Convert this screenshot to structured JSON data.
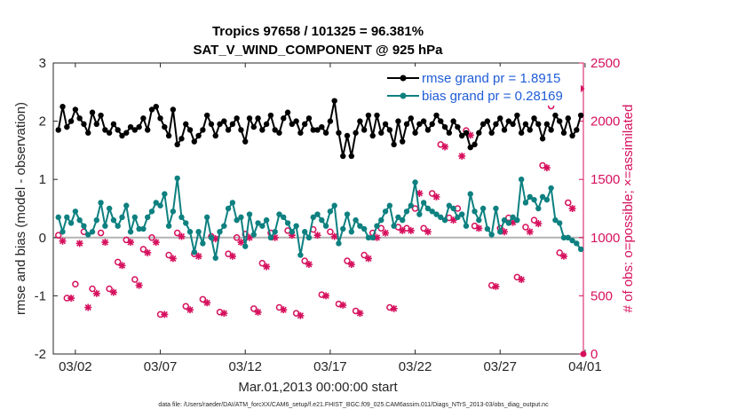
{
  "colors": {
    "rmse": "#000000",
    "bias": "#0e8080",
    "obs": "#d6105d",
    "legend_text": "#1f5cd6",
    "zero_line": "#b3b3b3"
  },
  "chart_data": {
    "type": "line",
    "title": "Tropics 97658 / 101325 = 96.381%",
    "subtitle": "SAT_V_WIND_COMPONENT @ 925 hPa",
    "xlabel": "Mar.01,2013 00:00:00 start",
    "ylabel_left": "rmse and bias (model - observation)",
    "ylabel_right": "# of obs: o=possible; ×=assimilated",
    "footnote": "data file: /Users/raeder/DAI/ATM_forcXX/CAM6_setup/f.e21.FHIST_BGC.f09_025.CAM6assim.011/Diags_NTrS_2013-03/obs_diag_output.nc",
    "x_range": [
      0.7,
      31.9
    ],
    "ylim_left": [
      -2,
      3
    ],
    "ylim_right": [
      0,
      2500
    ],
    "left_ticks": [
      "-2",
      "-1",
      "0",
      "1",
      "2",
      "3"
    ],
    "right_ticks": [
      "0",
      "500",
      "1000",
      "1500",
      "2000",
      "2500"
    ],
    "x_ticks": [
      {
        "day": 2,
        "label": "03/02"
      },
      {
        "day": 7,
        "label": "03/07"
      },
      {
        "day": 12,
        "label": "03/12"
      },
      {
        "day": 17,
        "label": "03/17"
      },
      {
        "day": 22,
        "label": "03/22"
      },
      {
        "day": 27,
        "label": "03/27"
      },
      {
        "day": 32,
        "label": "04/01"
      }
    ],
    "legend": {
      "position": "top-right",
      "entries": [
        "rmse grand pr = 1.8915",
        "bias grand pr = 0.28169"
      ]
    },
    "series": [
      {
        "name": "rmse",
        "marker": "filled-circle",
        "axis": "left",
        "x": [
          1.0,
          1.25,
          1.5,
          1.75,
          2.0,
          2.25,
          2.5,
          2.75,
          3.0,
          3.25,
          3.5,
          3.75,
          4.0,
          4.25,
          4.5,
          4.75,
          5.0,
          5.25,
          5.5,
          5.75,
          6.0,
          6.25,
          6.5,
          6.75,
          7.0,
          7.25,
          7.5,
          7.75,
          8.0,
          8.25,
          8.5,
          8.75,
          9.0,
          9.25,
          9.5,
          9.75,
          10.0,
          10.25,
          10.5,
          10.75,
          11.0,
          11.25,
          11.5,
          11.75,
          12.0,
          12.25,
          12.5,
          12.75,
          13.0,
          13.25,
          13.5,
          13.75,
          14.0,
          14.25,
          14.5,
          14.75,
          15.0,
          15.25,
          15.5,
          15.75,
          16.0,
          16.25,
          16.5,
          16.75,
          17.0,
          17.25,
          17.5,
          17.75,
          18.0,
          18.25,
          18.5,
          18.75,
          19.0,
          19.25,
          19.5,
          19.75,
          20.0,
          20.25,
          20.5,
          20.75,
          21.0,
          21.25,
          21.5,
          21.75,
          22.0,
          22.25,
          22.5,
          22.75,
          23.0,
          23.25,
          23.5,
          23.75,
          24.0,
          24.25,
          24.5,
          24.75,
          25.0,
          25.25,
          25.5,
          25.75,
          26.0,
          26.25,
          26.5,
          26.75,
          27.0,
          27.25,
          27.5,
          27.75,
          28.0,
          28.25,
          28.5,
          28.75,
          29.0,
          29.25,
          29.5,
          29.75,
          30.0,
          30.25,
          30.5,
          30.75,
          31.0,
          31.25,
          31.5,
          31.75
        ],
        "values": [
          1.85,
          2.25,
          1.9,
          2.0,
          2.2,
          2.05,
          1.95,
          1.8,
          2.15,
          1.95,
          2.1,
          1.85,
          1.8,
          1.95,
          1.85,
          1.75,
          1.8,
          1.9,
          1.85,
          1.9,
          2.05,
          1.85,
          2.2,
          2.25,
          2.05,
          1.9,
          1.75,
          2.2,
          1.6,
          1.7,
          1.95,
          1.85,
          1.65,
          1.75,
          1.85,
          2.1,
          1.95,
          1.75,
          1.95,
          2.0,
          1.85,
          1.95,
          2.05,
          1.85,
          1.65,
          2.05,
          1.9,
          2.05,
          1.85,
          1.95,
          2.1,
          1.85,
          1.8,
          2.05,
          2.15,
          1.95,
          2.0,
          1.8,
          1.95,
          2.05,
          1.85,
          1.85,
          1.9,
          1.8,
          2.0,
          2.35,
          1.8,
          1.4,
          1.75,
          1.4,
          1.8,
          2.0,
          1.85,
          2.1,
          1.75,
          2.1,
          1.8,
          1.95,
          1.85,
          1.6,
          2.0,
          1.65,
          1.95,
          2.05,
          1.8,
          1.95,
          2.0,
          1.85,
          1.95,
          2.1,
          2.0,
          1.9,
          1.8,
          2.0,
          1.9,
          1.75,
          1.8,
          1.55,
          1.6,
          1.8,
          1.95,
          2.0,
          1.8,
          1.95,
          2.05,
          1.85,
          2.0,
          1.95,
          2.1,
          1.8,
          1.95,
          1.85,
          2.05,
          1.95,
          1.7,
          1.95,
          1.85,
          2.1,
          2.0,
          1.8,
          2.05,
          1.75,
          1.85,
          2.1
        ]
      },
      {
        "name": "bias",
        "marker": "filled-circle",
        "axis": "left",
        "x": [
          1.0,
          1.25,
          1.5,
          1.75,
          2.0,
          2.25,
          2.5,
          2.75,
          3.0,
          3.25,
          3.5,
          3.75,
          4.0,
          4.25,
          4.5,
          4.75,
          5.0,
          5.25,
          5.5,
          5.75,
          6.0,
          6.25,
          6.5,
          6.75,
          7.0,
          7.25,
          7.5,
          7.75,
          8.0,
          8.25,
          8.5,
          8.75,
          9.0,
          9.25,
          9.5,
          9.75,
          10.0,
          10.25,
          10.5,
          10.75,
          11.0,
          11.25,
          11.5,
          11.75,
          12.0,
          12.25,
          12.5,
          12.75,
          13.0,
          13.25,
          13.5,
          13.75,
          14.0,
          14.25,
          14.5,
          14.75,
          15.0,
          15.25,
          15.5,
          15.75,
          16.0,
          16.25,
          16.5,
          16.75,
          17.0,
          17.25,
          17.5,
          17.75,
          18.0,
          18.25,
          18.5,
          18.75,
          19.0,
          19.25,
          19.5,
          19.75,
          20.0,
          20.25,
          20.5,
          20.75,
          21.0,
          21.25,
          21.5,
          21.75,
          22.0,
          22.25,
          22.5,
          22.75,
          23.0,
          23.25,
          23.5,
          23.75,
          24.0,
          24.25,
          24.5,
          24.75,
          25.0,
          25.25,
          25.5,
          25.75,
          26.0,
          26.25,
          26.5,
          26.75,
          27.0,
          27.25,
          27.5,
          27.75,
          28.0,
          28.25,
          28.5,
          28.75,
          29.0,
          29.25,
          29.5,
          29.75,
          30.0,
          30.25,
          30.5,
          30.75,
          31.0,
          31.25,
          31.5,
          31.75
        ],
        "values": [
          0.35,
          0.1,
          0.35,
          0.25,
          0.45,
          0.3,
          0.2,
          0.05,
          0.1,
          0.3,
          0.6,
          0.2,
          0.5,
          0.3,
          0.2,
          0.35,
          0.55,
          0.1,
          0.35,
          0.15,
          0.15,
          0.35,
          0.45,
          0.6,
          0.55,
          0.75,
          0.2,
          0.45,
          1.02,
          0.35,
          0.25,
          0.1,
          -0.25,
          0.1,
          -0.1,
          0.35,
          0.0,
          -0.35,
          0.1,
          0.2,
          0.5,
          0.6,
          0.3,
          0.35,
          -0.15,
          0.4,
          0.05,
          0.25,
          0.2,
          0.3,
          0.0,
          0.1,
          0.4,
          0.35,
          0.25,
          0.1,
          0.2,
          -0.3,
          0.1,
          0.0,
          0.35,
          0.4,
          0.3,
          0.2,
          0.45,
          0.55,
          -0.1,
          0.15,
          0.4,
          0.1,
          0.3,
          0.2,
          0.15,
          0.0,
          0.0,
          0.2,
          0.3,
          0.45,
          0.55,
          0.2,
          0.35,
          0.3,
          0.45,
          0.55,
          0.95,
          0.4,
          0.6,
          0.5,
          0.45,
          0.4,
          0.35,
          0.3,
          0.55,
          0.5,
          0.35,
          0.4,
          0.2,
          0.75,
          0.45,
          0.3,
          0.5,
          0.15,
          0.05,
          0.5,
          0.1,
          0.3,
          0.25,
          0.35,
          0.3,
          1.0,
          0.6,
          0.7,
          0.65,
          0.5,
          0.7,
          0.65,
          0.85,
          0.3,
          0.25,
          0.0,
          0.0,
          -0.05,
          -0.1,
          -0.2
        ]
      },
      {
        "name": "obs possible",
        "marker": "open-circle",
        "axis": "right",
        "x": [
          1.0,
          1.5,
          2.0,
          2.5,
          3.0,
          3.5,
          4.0,
          4.5,
          5.0,
          5.5,
          6.0,
          6.5,
          7.0,
          7.5,
          8.0,
          8.5,
          9.0,
          9.5,
          10.0,
          10.5,
          11.0,
          11.5,
          12.0,
          12.5,
          13.0,
          13.5,
          14.0,
          14.5,
          15.0,
          15.5,
          16.0,
          16.5,
          17.0,
          17.5,
          18.0,
          18.5,
          19.0,
          19.5,
          20.0,
          20.5,
          21.0,
          21.5,
          22.0,
          22.5,
          23.0,
          23.5,
          24.0,
          24.5,
          25.0,
          25.5,
          26.0,
          26.5,
          27.0,
          27.5,
          28.0,
          28.5,
          29.0,
          29.5,
          30.0,
          30.5,
          31.0,
          31.5
        ],
        "values": [
          1020,
          480,
          600,
          1050,
          560,
          1040,
          560,
          790,
          980,
          640,
          900,
          1000,
          340,
          850,
          1040,
          410,
          860,
          470,
          1010,
          360,
          860,
          1000,
          1030,
          390,
          780,
          1040,
          400,
          1060,
          350,
          800,
          1070,
          510,
          1050,
          430,
          800,
          370,
          850,
          1040,
          1080,
          400,
          1090,
          1080,
          1250,
          1080,
          1380,
          1800,
          1170,
          1250,
          1920,
          1100,
          2350,
          590,
          1080,
          1170,
          660,
          1090,
          1150,
          1620,
          2130,
          870,
          1300,
          2330
        ]
      },
      {
        "name": "obs assimilated",
        "marker": "asterisk",
        "axis": "right",
        "x": [
          1.25,
          1.75,
          2.25,
          2.75,
          3.25,
          3.75,
          4.25,
          4.75,
          5.25,
          5.75,
          6.25,
          6.75,
          7.25,
          7.75,
          8.25,
          8.75,
          9.25,
          9.75,
          10.25,
          10.75,
          11.25,
          11.75,
          12.25,
          12.75,
          13.25,
          13.75,
          14.25,
          14.75,
          15.25,
          15.75,
          16.25,
          16.75,
          17.25,
          17.75,
          18.25,
          18.75,
          19.25,
          19.75,
          20.25,
          20.75,
          21.25,
          21.75,
          22.25,
          22.75,
          23.25,
          23.75,
          24.25,
          24.75,
          25.25,
          25.75,
          26.25,
          26.75,
          27.25,
          27.75,
          28.25,
          28.75,
          29.25,
          29.75,
          30.25,
          30.75,
          31.25,
          31.75
        ],
        "values": [
          970,
          480,
          950,
          400,
          520,
          960,
          530,
          760,
          960,
          590,
          870,
          960,
          340,
          820,
          1010,
          380,
          840,
          440,
          990,
          350,
          840,
          960,
          1000,
          360,
          750,
          1000,
          380,
          1020,
          330,
          770,
          1020,
          500,
          1010,
          420,
          770,
          350,
          820,
          1000,
          1040,
          390,
          1060,
          1060,
          1380,
          1050,
          1350,
          1780,
          1150,
          1700,
          1880,
          1080,
          2390,
          580,
          1050,
          1130,
          640,
          1050,
          1120,
          1600,
          2170,
          840,
          1250,
          2280
        ]
      }
    ]
  }
}
